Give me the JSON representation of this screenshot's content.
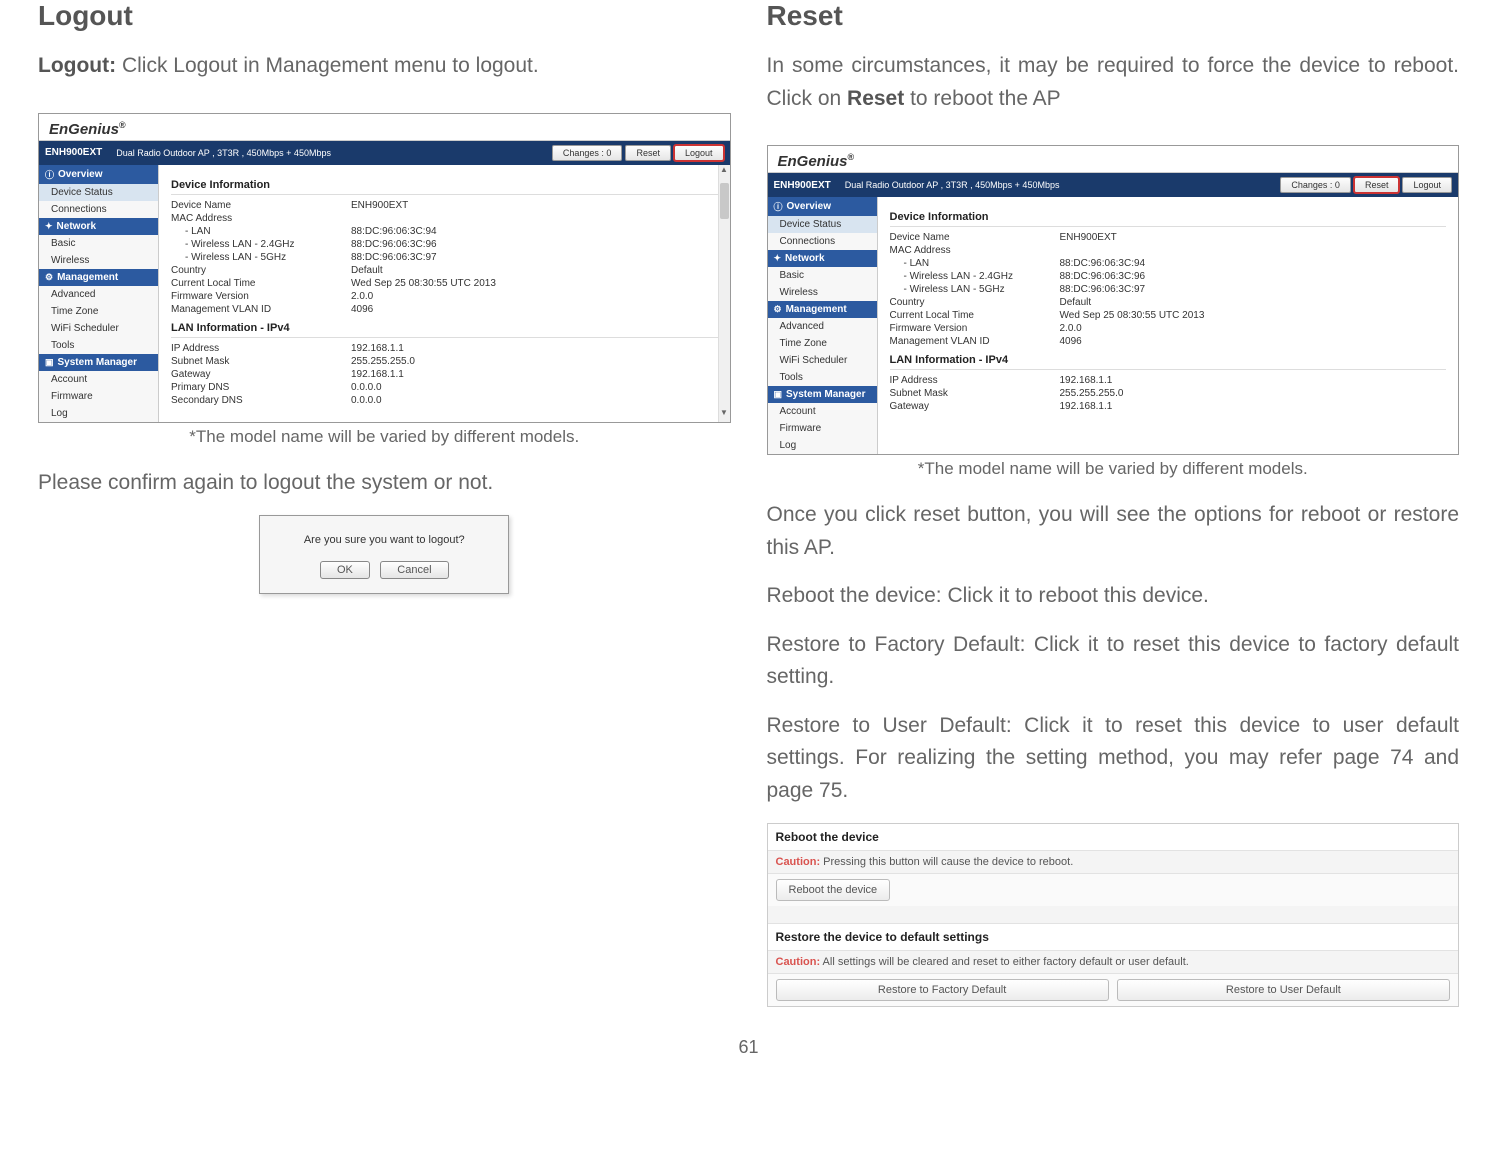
{
  "page_number": "61",
  "left": {
    "title": "Logout",
    "intro_prefix": "Logout:",
    "intro_rest": " Click Logout in Management menu to logout.",
    "caption": "*The model name will be varied by different models.",
    "confirm_text": "Please confirm again to logout the system or not."
  },
  "right": {
    "title": "Reset",
    "intro": "In some circumstances, it may be required to force the device to reboot. Click on",
    "intro_bold": " Reset ",
    "intro_after": "to reboot the AP",
    "caption": "*The model name will be varied by different models.",
    "p1": "Once you click reset button, you will see the options for reboot or restore this AP.",
    "p2": "Reboot the device: Click it to reboot this device.",
    "p3": "Restore to Factory Default: Click it to reset this device to factory default setting.",
    "p4": "Restore to User Default: Click it to reset this device to user default settings. For realizing the setting method, you may refer page 74 and page 75."
  },
  "ui": {
    "brand": "EnGenius",
    "model": "ENH900EXT",
    "subtitle": "Dual Radio Outdoor AP , 3T3R , 450Mbps + 450Mbps",
    "changes_btn": "Changes : 0",
    "reset_btn": "Reset",
    "logout_btn": "Logout",
    "nav": {
      "overview": "Overview",
      "device_status": "Device Status",
      "connections": "Connections",
      "network": "Network",
      "basic": "Basic",
      "wireless": "Wireless",
      "management": "Management",
      "advanced": "Advanced",
      "time_zone": "Time Zone",
      "wifi_scheduler": "WiFi Scheduler",
      "tools": "Tools",
      "system_manager": "System Manager",
      "account": "Account",
      "firmware": "Firmware",
      "log": "Log"
    },
    "dev_info_title": "Device Information",
    "lan_info_title": "LAN Information - IPv4",
    "fields": {
      "device_name_k": "Device Name",
      "device_name_v": "ENH900EXT",
      "mac_k": "MAC Address",
      "lan_k": "- LAN",
      "lan_v": "88:DC:96:06:3C:94",
      "w24_k": "- Wireless LAN - 2.4GHz",
      "w24_v": "88:DC:96:06:3C:96",
      "w5_k": "- Wireless LAN - 5GHz",
      "w5_v": "88:DC:96:06:3C:97",
      "country_k": "Country",
      "country_v": "Default",
      "time_k": "Current Local Time",
      "time_v": "Wed Sep 25 08:30:55 UTC 2013",
      "fw_k": "Firmware Version",
      "fw_v": "2.0.0",
      "vlan_k": "Management VLAN ID",
      "vlan_v": "4096",
      "ip_k": "IP Address",
      "ip_v": "192.168.1.1",
      "mask_k": "Subnet Mask",
      "mask_v": "255.255.255.0",
      "gw_k": "Gateway",
      "gw_v": "192.168.1.1",
      "pdns_k": "Primary DNS",
      "pdns_v": "0.0.0.0",
      "sdns_k": "Secondary DNS",
      "sdns_v": "0.0.0.0"
    }
  },
  "dialog": {
    "msg": "Are you sure you want to logout?",
    "ok": "OK",
    "cancel": "Cancel"
  },
  "panel": {
    "reboot_title": "Reboot the device",
    "caution_label": "Caution:",
    "reboot_caution": " Pressing this button will cause the device to reboot.",
    "reboot_btn": "Reboot the device",
    "restore_title": "Restore the device to default settings",
    "restore_caution": " All settings will be cleared and reset to either factory default or user default.",
    "restore_factory_btn": "Restore to Factory Default",
    "restore_user_btn": "Restore to User Default"
  },
  "colors": {
    "topbar": "#1a3a6b",
    "navhdr": "#2c5aa0",
    "highlight": "#cc3333",
    "caution": "#d9534f"
  }
}
